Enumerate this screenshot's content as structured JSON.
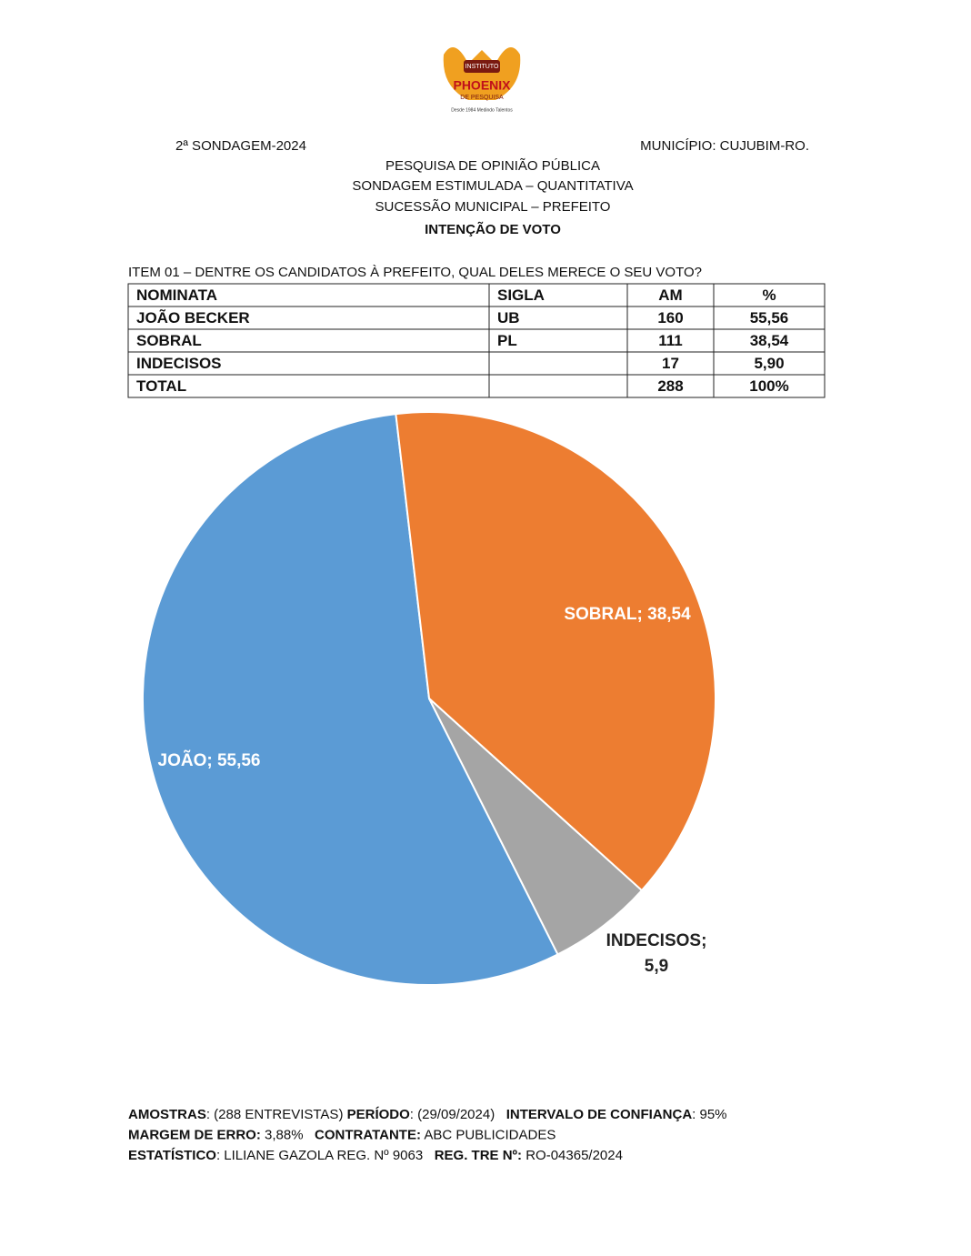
{
  "header": {
    "logo": {
      "top": "INSTITUTO",
      "name": "PHOENIX",
      "sub": "DE PESQUISA",
      "tagline": "Desde 1984 Medindo Talentos"
    },
    "left": "2ª SONDAGEM-2024",
    "right": "MUNICÍPIO: CUJUBIM-RO.",
    "lines": [
      "PESQUISA DE OPINIÃO PÚBLICA",
      "SONDAGEM ESTIMULADA – QUANTITATIVA",
      "SUCESSÃO MUNICIPAL – PREFEITO"
    ],
    "title": "INTENÇÃO DE VOTO"
  },
  "question": "ITEM 01 – DENTRE OS CANDIDATOS À PREFEITO, QUAL DELES MERECE O SEU VOTO?",
  "table": {
    "columns": [
      "NOMINATA",
      "SIGLA",
      "AM",
      "%"
    ],
    "rows": [
      [
        "JOÃO BECKER",
        "UB",
        "160",
        "55,56"
      ],
      [
        "SOBRAL",
        "PL",
        "111",
        "38,54"
      ],
      [
        "INDECISOS",
        "",
        "17",
        "5,90"
      ],
      [
        "TOTAL",
        "",
        "288",
        "100%"
      ]
    ]
  },
  "chart_data": {
    "type": "pie",
    "values": [
      55.56,
      38.54,
      5.9
    ],
    "value_labels": [
      "JOÃO; 55,56",
      "SOBRAL; 38,54",
      "INDECISOS; 5,9"
    ],
    "colors": [
      "#5b9bd5",
      "#ed7d31",
      "#a5a5a5"
    ]
  },
  "footer": {
    "lines": [
      [
        {
          "text": "AMOSTRAS",
          "bold": true
        },
        {
          "text": ": (288 ENTREVISTAS) ",
          "bold": false
        },
        {
          "text": "PERÍODO",
          "bold": true
        },
        {
          "text": ": (29/09/2024)   ",
          "bold": false
        },
        {
          "text": "INTERVALO DE CONFIANÇA",
          "bold": true
        },
        {
          "text": ": 95%",
          "bold": false
        }
      ],
      [
        {
          "text": "MARGEM DE ERRO:",
          "bold": true
        },
        {
          "text": " 3,88%   ",
          "bold": false
        },
        {
          "text": "CONTRATANTE:",
          "bold": true
        },
        {
          "text": " ABC PUBLICIDADES",
          "bold": false
        }
      ],
      [
        {
          "text": "ESTATÍSTICO",
          "bold": true
        },
        {
          "text": ": LILIANE GAZOLA REG. Nº 9063   ",
          "bold": false
        },
        {
          "text": "REG. TRE Nº:",
          "bold": true
        },
        {
          "text": " RO-04365/2024",
          "bold": false
        }
      ]
    ]
  }
}
